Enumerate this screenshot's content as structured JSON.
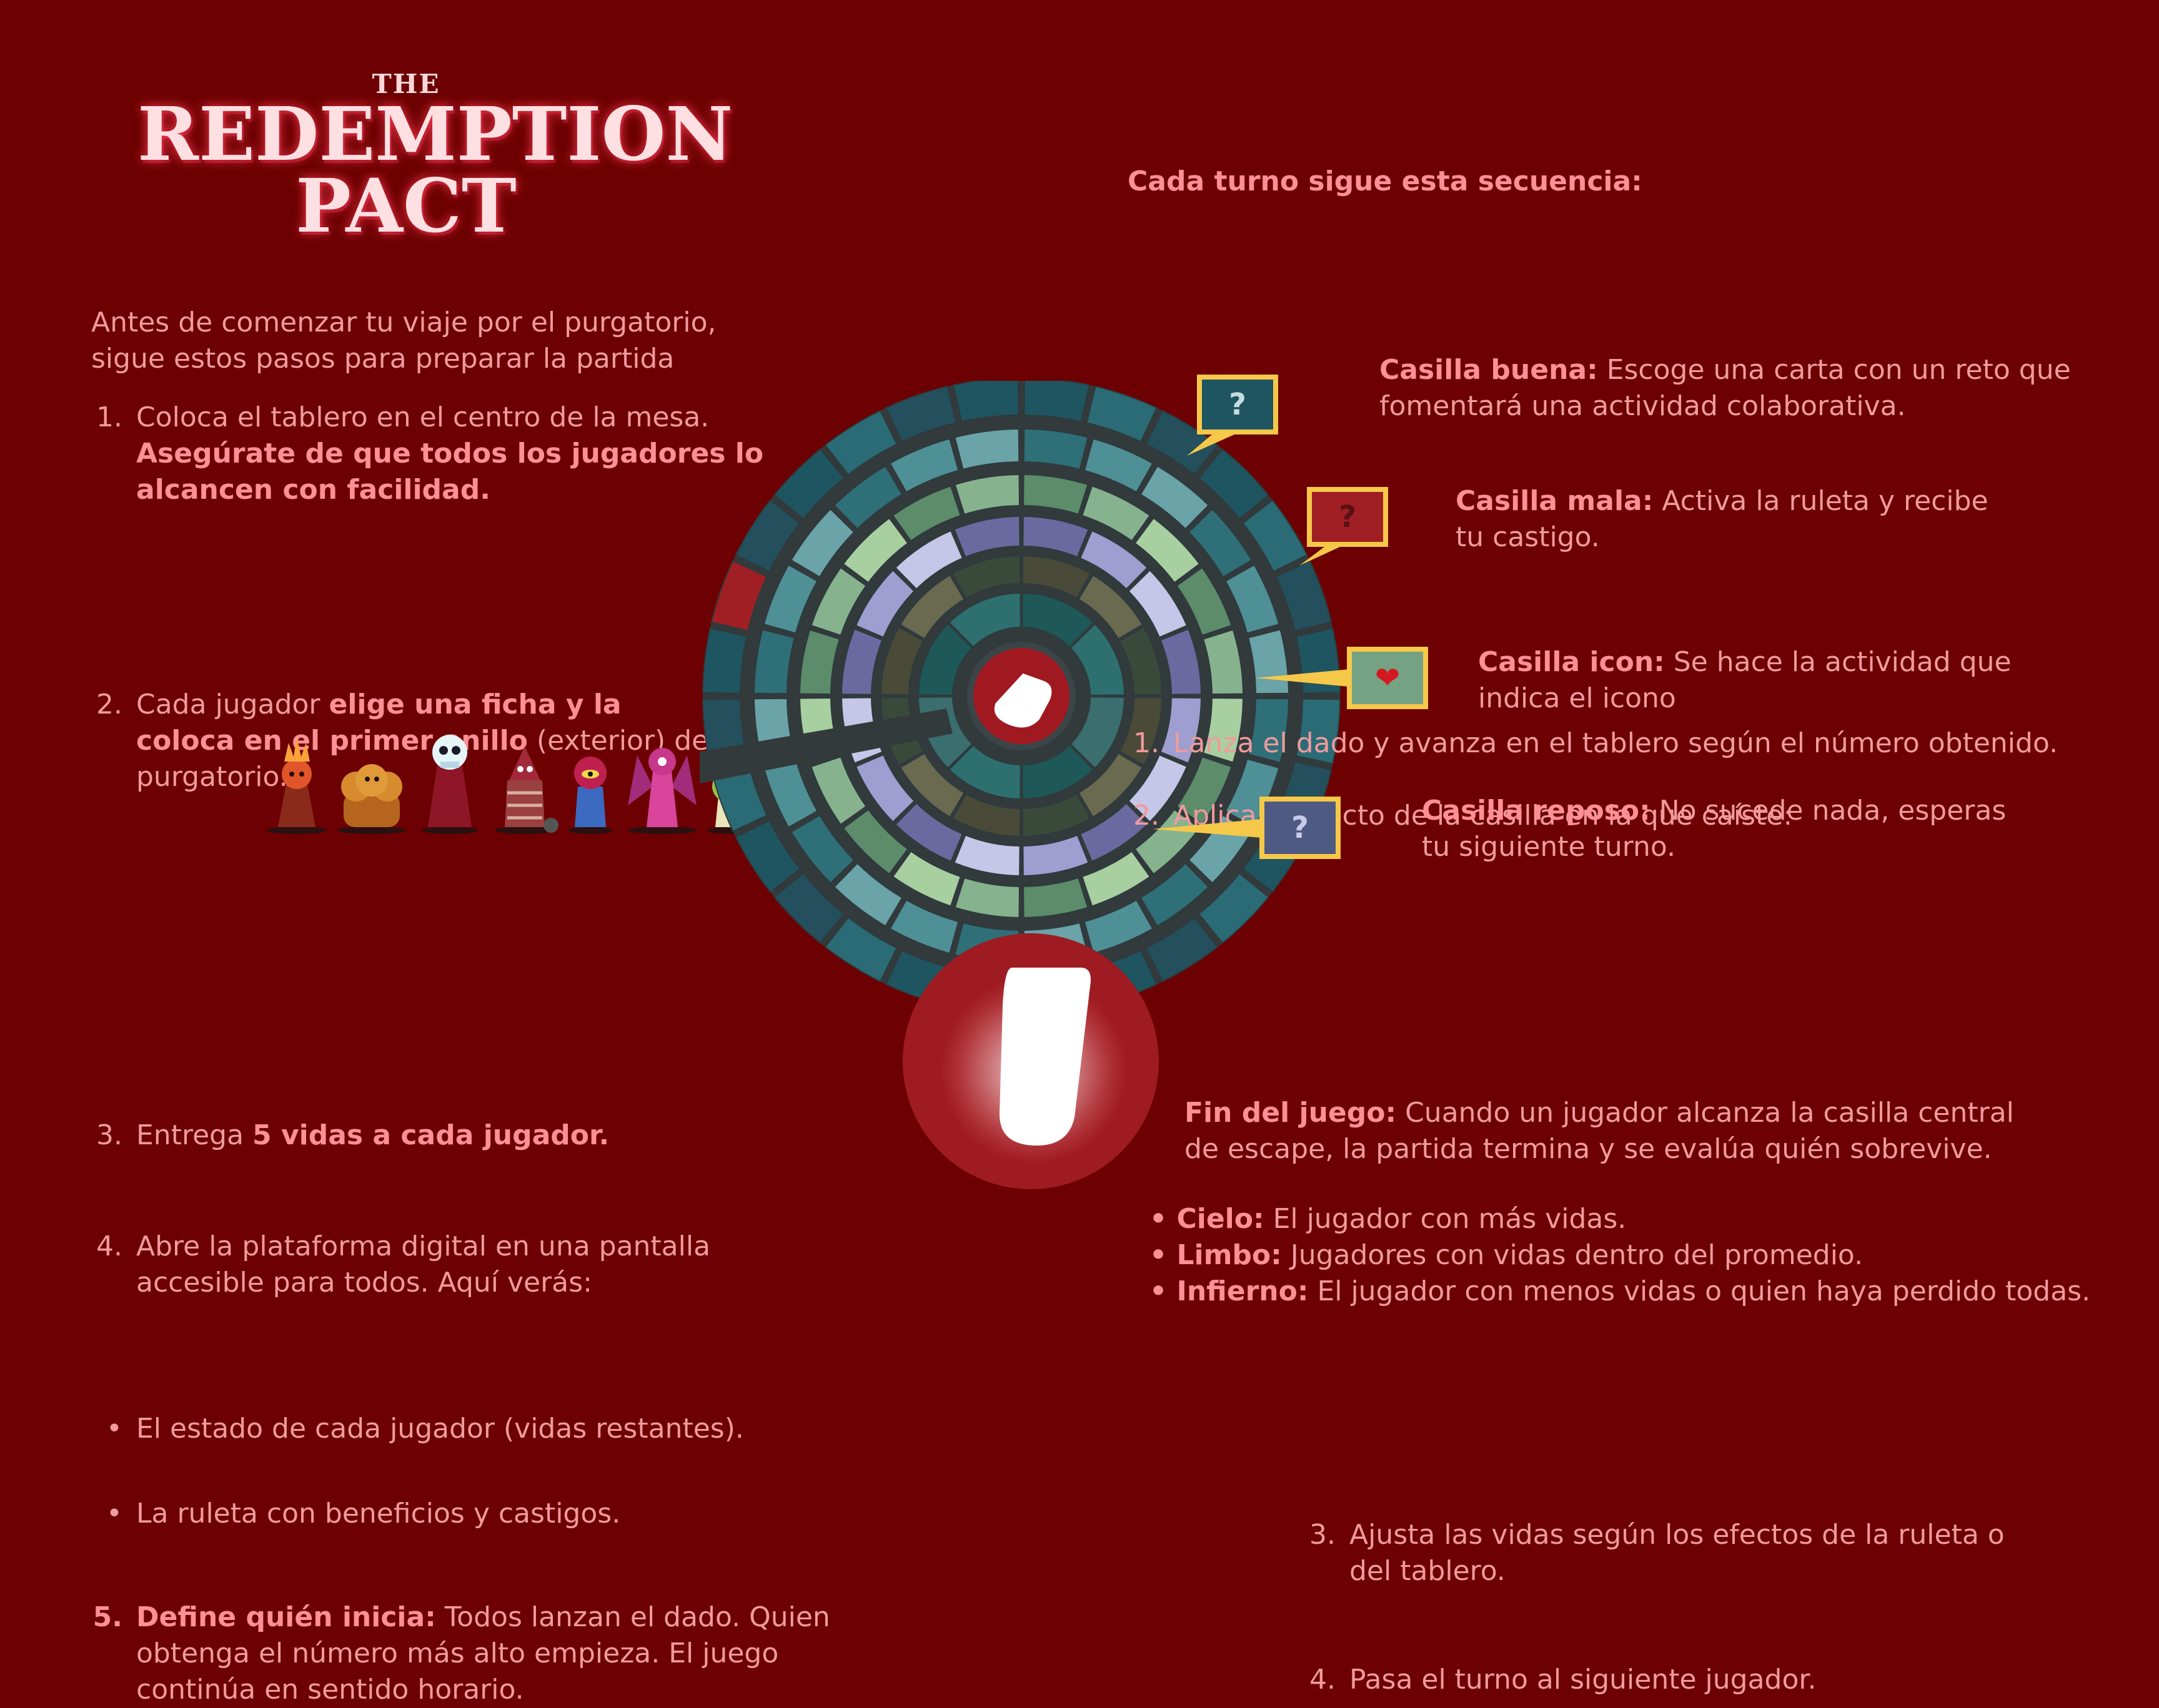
{
  "logo": {
    "the": "THE",
    "line1": "REDEMPTION",
    "line2": "PACT"
  },
  "left": {
    "intro": [
      "Antes de comenzar tu viaje por el purgatorio,",
      "sigue estos pasos para preparar la partida"
    ],
    "step1": {
      "num": "1.",
      "text": "Coloca el tablero en el centro de la mesa.",
      "bold1": "Asegúrate de que todos los jugadores lo",
      "bold2": "alcancen con facilidad."
    },
    "step2": {
      "num": "2.",
      "pre": "Cada jugador ",
      "bold1": "elige una ficha y la",
      "bold2": "coloca en el primer anillo",
      "post": " (exterior) del",
      "line3": "purgatorio."
    },
    "step3": {
      "num": "3.",
      "pre": "Entrega ",
      "bold": "5 vidas a cada jugador."
    },
    "step4": {
      "num": "4.",
      "line1": "Abre la plataforma digital en una pantalla",
      "line2": "accesible para todos. Aquí verás:"
    },
    "bullets": [
      "El estado de cada jugador (vidas restantes).",
      "La ruleta con beneficios y castigos."
    ],
    "step5": {
      "num": "5.",
      "bold": "Define quién inicia:",
      "text1": " Todos lanzan el dado. Quien",
      "text2": "obtenga el número más alto empieza. El juego",
      "text3": "continúa en sentido horario."
    }
  },
  "right": {
    "sequence_title": "Cada turno sigue esta secuencia:",
    "seq": [
      {
        "num": "1.",
        "text": "Lanza el dado y avanza en el tablero según el número obtenido."
      },
      {
        "num": "2.",
        "text": "Aplica el efecto de la casilla en la que caíste:"
      }
    ],
    "tiles": [
      {
        "title": "Casilla buena:",
        "line1": " Escoge una carta con un reto que",
        "line2": "fomentará una actividad colaborativa.",
        "symbol": "?"
      },
      {
        "title": "Casilla mala:",
        "line1": " Activa la ruleta y recibe",
        "line2": "tu castigo.",
        "symbol": "?"
      },
      {
        "title": "Casilla icon:",
        "line1": " Se hace la actividad que",
        "line2": "indica el icono",
        "symbol": "❤"
      },
      {
        "title": "Casilla reposo:",
        "line1": " No sucede nada, esperas",
        "line2": "tu siguiente turno.",
        "symbol": "?"
      }
    ],
    "seq2": [
      {
        "num": "3.",
        "line1": "Ajusta las vidas según los efectos de la ruleta o",
        "line2": "del tablero."
      },
      {
        "num": "4.",
        "line1": "Pasa el turno al siguiente jugador.",
        "line2": ""
      }
    ],
    "end": {
      "bold": "Fin del juego:",
      "line1": " Cuando un jugador alcanza la casilla central",
      "line2": "de escape, la partida termina y se evalúa quién sobrevive."
    },
    "outcomes": [
      {
        "bold": "Cielo:",
        "text": " El jugador con más vidas."
      },
      {
        "bold": "Limbo:",
        "text": " Jugadores con vidas dentro del promedio."
      },
      {
        "bold": "Infierno:",
        "text": " El jugador con menos vidas o quien haya perdido todas."
      }
    ]
  },
  "colors": {
    "background": "#6c0002",
    "text": "#f09a9c",
    "accent": "#ff8f95",
    "callout_border": "#f6c84a"
  }
}
